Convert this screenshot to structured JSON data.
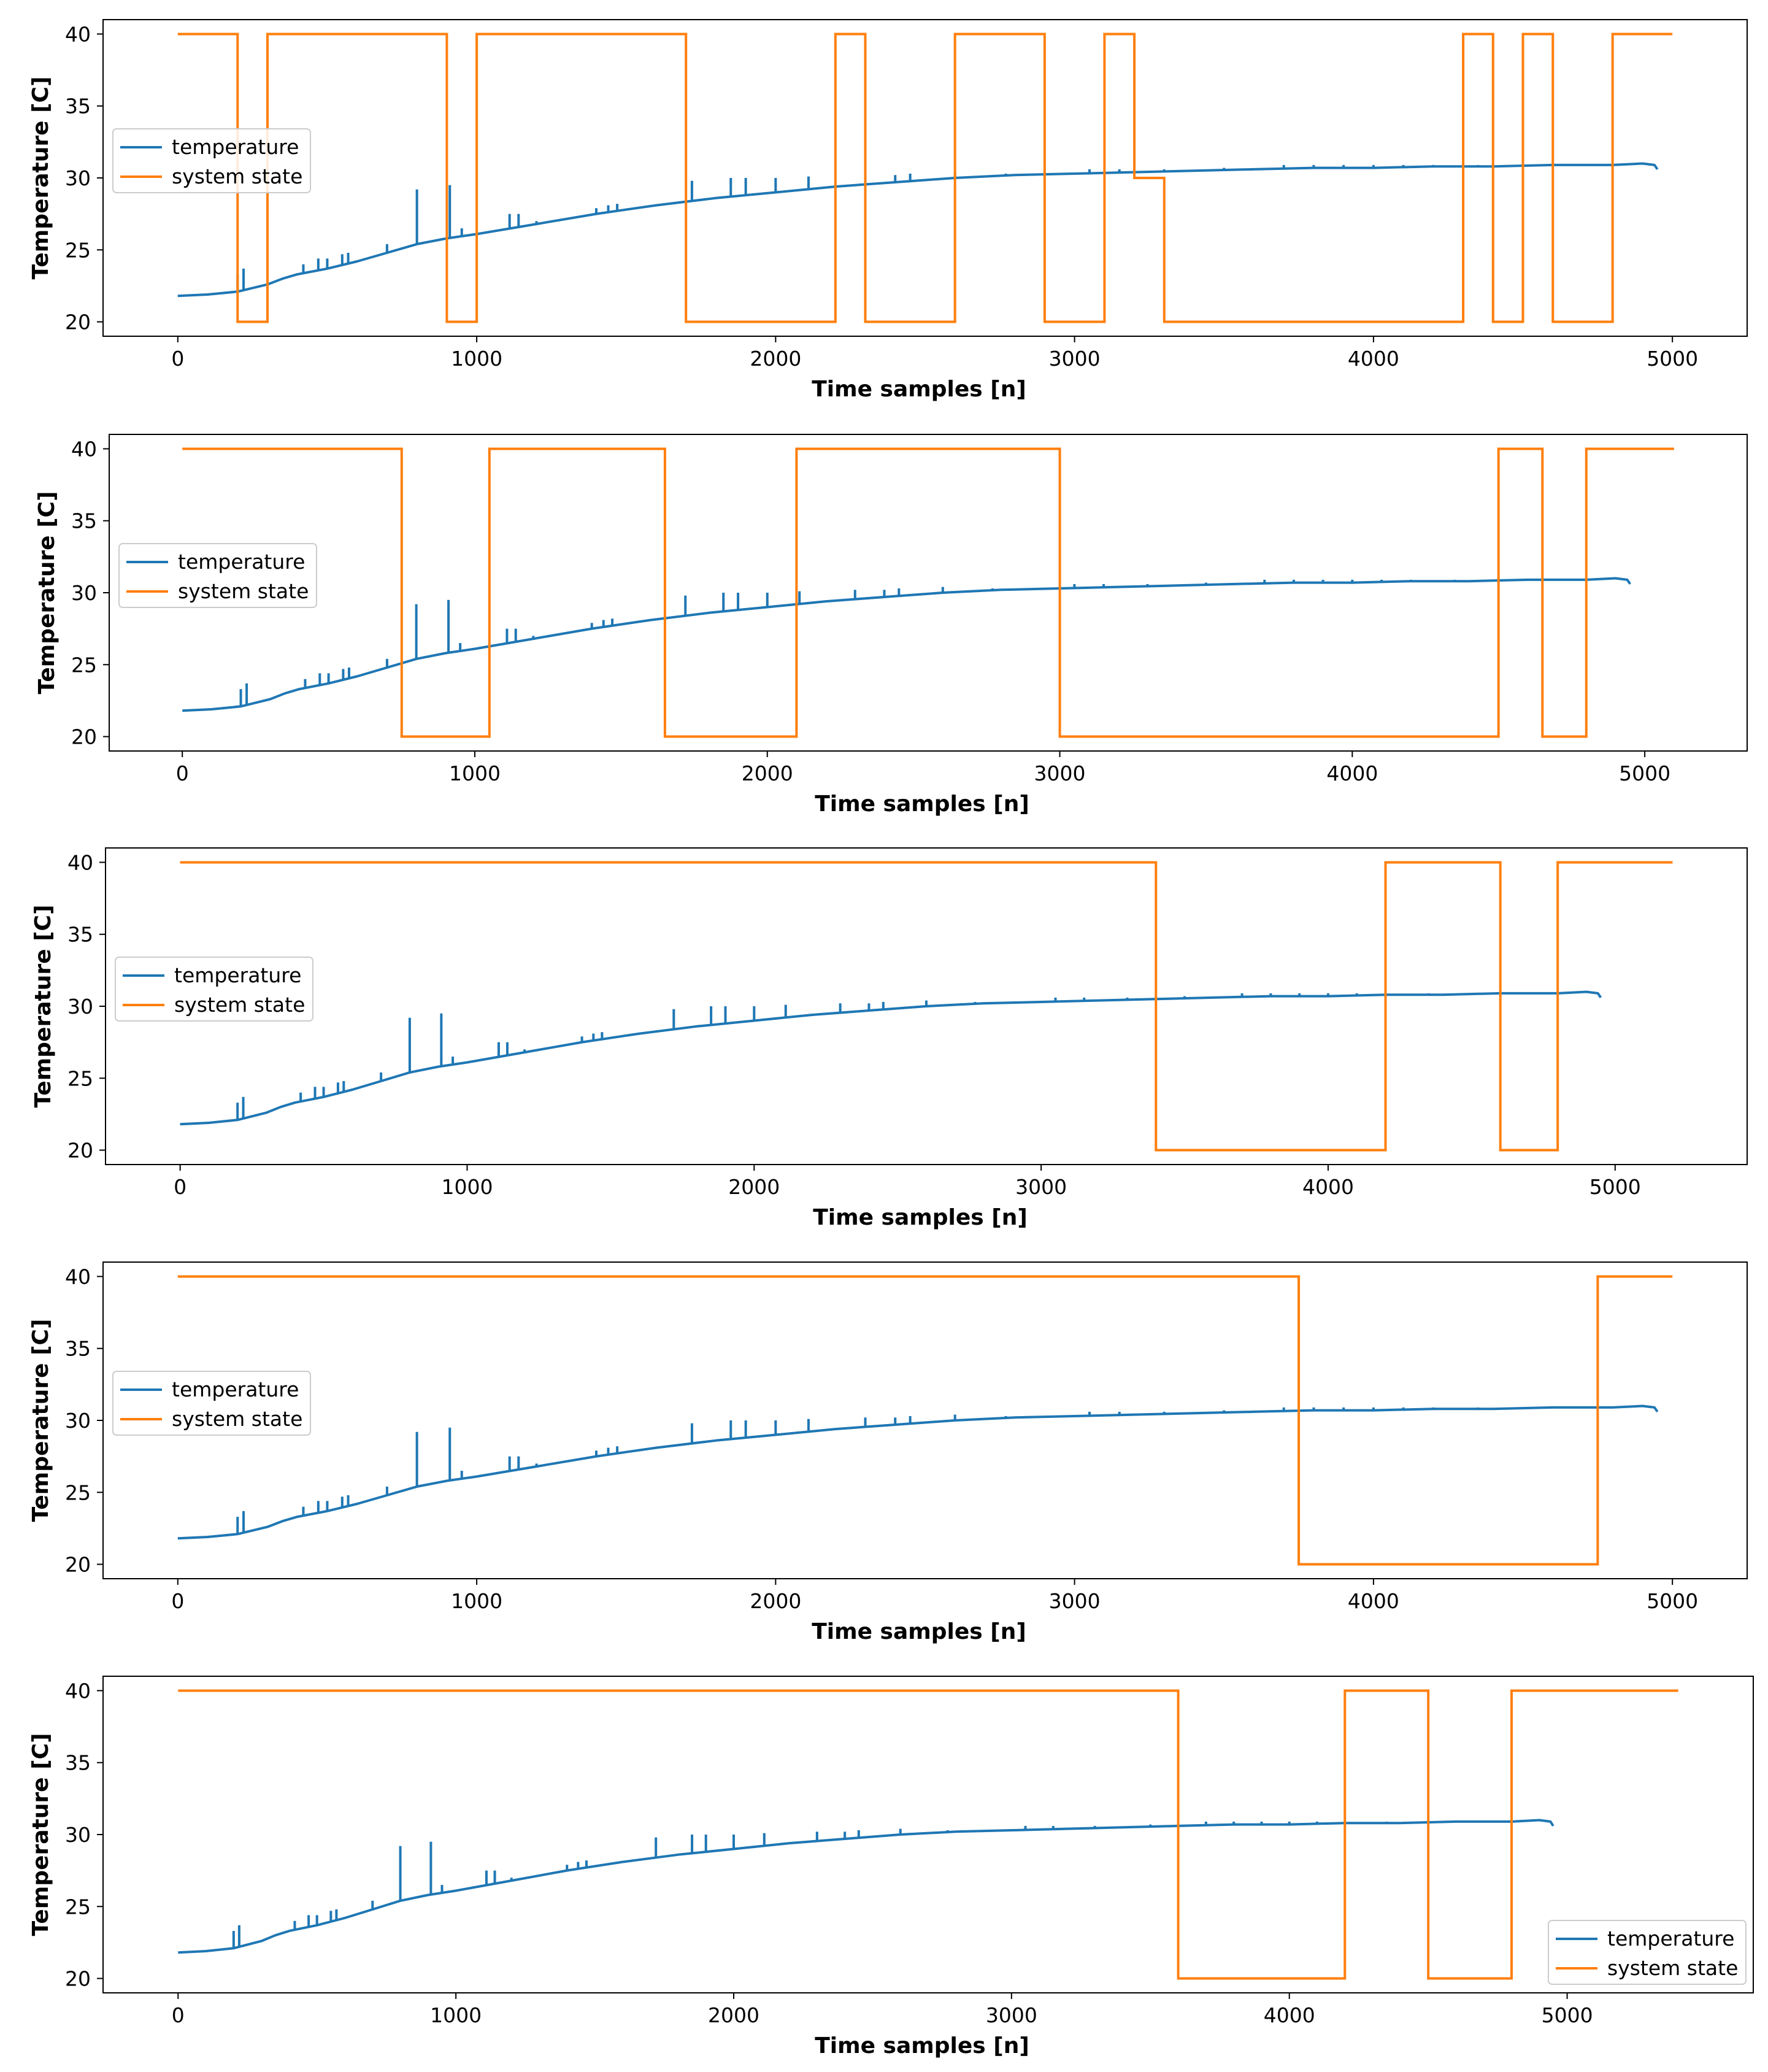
{
  "colors": {
    "temperature": "#1f77b4",
    "system_state": "#ff7f0e"
  },
  "chart_data": [
    {
      "type": "line",
      "xlabel": "Time samples [n]",
      "ylabel": "Temperature [C]",
      "xlim": [
        -250,
        5250
      ],
      "ylim": [
        19,
        41
      ],
      "xticks": [
        0,
        1000,
        2000,
        3000,
        4000,
        5000
      ],
      "yticks": [
        20,
        25,
        30,
        35,
        40
      ],
      "legend_position": "center-left",
      "legend": [
        "temperature",
        "system state"
      ],
      "series": [
        {
          "name": "system state",
          "style": "step",
          "x_max": 5000,
          "steps": [
            [
              0,
              40
            ],
            [
              200,
              20
            ],
            [
              300,
              40
            ],
            [
              900,
              20
            ],
            [
              1000,
              40
            ],
            [
              1700,
              20
            ],
            [
              2200,
              40
            ],
            [
              2300,
              20
            ],
            [
              2600,
              40
            ],
            [
              2900,
              20
            ],
            [
              3100,
              40
            ],
            [
              3200,
              30
            ],
            [
              3300,
              20
            ],
            [
              4300,
              40
            ],
            [
              4400,
              20
            ],
            [
              4500,
              40
            ],
            [
              4600,
              20
            ],
            [
              4800,
              40
            ]
          ]
        }
      ]
    },
    {
      "type": "line",
      "xlabel": "Time samples [n]",
      "ylabel": "Temperature [C]",
      "xlim": [
        -250,
        5350
      ],
      "ylim": [
        19,
        41
      ],
      "xticks": [
        0,
        1000,
        2000,
        3000,
        4000,
        5000
      ],
      "yticks": [
        20,
        25,
        30,
        35,
        40
      ],
      "legend_position": "center-left",
      "legend": [
        "temperature",
        "system state"
      ],
      "series": [
        {
          "name": "system state",
          "style": "step",
          "x_max": 5100,
          "steps": [
            [
              0,
              40
            ],
            [
              750,
              20
            ],
            [
              1050,
              40
            ],
            [
              1650,
              20
            ],
            [
              2100,
              40
            ],
            [
              3000,
              20
            ],
            [
              4500,
              40
            ],
            [
              4650,
              20
            ],
            [
              4800,
              40
            ]
          ]
        }
      ]
    },
    {
      "type": "line",
      "xlabel": "Time samples [n]",
      "ylabel": "Temperature [C]",
      "xlim": [
        -260,
        5460
      ],
      "ylim": [
        19,
        41
      ],
      "xticks": [
        0,
        1000,
        2000,
        3000,
        4000,
        5000
      ],
      "yticks": [
        20,
        25,
        30,
        35,
        40
      ],
      "legend_position": "center-left",
      "legend": [
        "temperature",
        "system state"
      ],
      "series": [
        {
          "name": "system state",
          "style": "step",
          "x_max": 5200,
          "steps": [
            [
              0,
              40
            ],
            [
              3400,
              20
            ],
            [
              4200,
              40
            ],
            [
              4600,
              20
            ],
            [
              4800,
              40
            ]
          ]
        }
      ]
    },
    {
      "type": "line",
      "xlabel": "Time samples [n]",
      "ylabel": "Temperature [C]",
      "xlim": [
        -250,
        5250
      ],
      "ylim": [
        19,
        41
      ],
      "xticks": [
        0,
        1000,
        2000,
        3000,
        4000,
        5000
      ],
      "yticks": [
        20,
        25,
        30,
        35,
        40
      ],
      "legend_position": "center-left",
      "legend": [
        "temperature",
        "system state"
      ],
      "series": [
        {
          "name": "system state",
          "style": "step",
          "x_max": 5000,
          "steps": [
            [
              0,
              40
            ],
            [
              3750,
              20
            ],
            [
              4750,
              40
            ]
          ]
        }
      ]
    },
    {
      "type": "line",
      "xlabel": "Time samples [n]",
      "ylabel": "Temperature [C]",
      "xlim": [
        -270,
        5670
      ],
      "ylim": [
        19,
        41
      ],
      "xticks": [
        0,
        1000,
        2000,
        3000,
        4000,
        5000
      ],
      "yticks": [
        20,
        25,
        30,
        35,
        40
      ],
      "legend_position": "lower-right",
      "legend": [
        "temperature",
        "system state"
      ],
      "series": [
        {
          "name": "system state",
          "style": "step",
          "x_max": 5400,
          "steps": [
            [
              0,
              40
            ],
            [
              3600,
              20
            ],
            [
              4200,
              40
            ],
            [
              4500,
              20
            ],
            [
              4800,
              40
            ]
          ]
        }
      ]
    }
  ],
  "temperature_series": {
    "name": "temperature",
    "x": [
      0,
      100,
      200,
      300,
      350,
      400,
      500,
      600,
      700,
      800,
      900,
      1000,
      1200,
      1400,
      1600,
      1800,
      2000,
      2200,
      2400,
      2600,
      2800,
      3000,
      3200,
      3400,
      3600,
      3800,
      4000,
      4200,
      4400,
      4600,
      4800,
      4900,
      4940,
      4950
    ],
    "y": [
      21.8,
      21.9,
      22.1,
      22.6,
      23.0,
      23.3,
      23.7,
      24.2,
      24.8,
      25.4,
      25.8,
      26.1,
      26.8,
      27.5,
      28.1,
      28.6,
      29.0,
      29.4,
      29.7,
      30.0,
      30.2,
      30.3,
      30.4,
      30.5,
      30.6,
      30.7,
      30.7,
      30.8,
      30.8,
      30.9,
      30.9,
      31.0,
      30.9,
      30.6
    ],
    "spikes": [
      {
        "x": 200,
        "y": 23.3
      },
      {
        "x": 220,
        "y": 23.7
      },
      {
        "x": 420,
        "y": 24.0
      },
      {
        "x": 470,
        "y": 24.4
      },
      {
        "x": 500,
        "y": 24.4
      },
      {
        "x": 550,
        "y": 24.7
      },
      {
        "x": 570,
        "y": 24.8
      },
      {
        "x": 700,
        "y": 25.4
      },
      {
        "x": 800,
        "y": 29.2
      },
      {
        "x": 910,
        "y": 29.5
      },
      {
        "x": 950,
        "y": 26.5
      },
      {
        "x": 1110,
        "y": 27.5
      },
      {
        "x": 1140,
        "y": 27.5
      },
      {
        "x": 1200,
        "y": 27.0
      },
      {
        "x": 1400,
        "y": 27.9
      },
      {
        "x": 1440,
        "y": 28.1
      },
      {
        "x": 1470,
        "y": 28.2
      },
      {
        "x": 1720,
        "y": 29.8
      },
      {
        "x": 1850,
        "y": 30.0
      },
      {
        "x": 1900,
        "y": 30.0
      },
      {
        "x": 2000,
        "y": 30.0
      },
      {
        "x": 2110,
        "y": 30.1
      },
      {
        "x": 2300,
        "y": 30.2
      },
      {
        "x": 2400,
        "y": 30.2
      },
      {
        "x": 2450,
        "y": 30.3
      },
      {
        "x": 2600,
        "y": 30.4
      },
      {
        "x": 2770,
        "y": 30.3
      },
      {
        "x": 3050,
        "y": 30.6
      },
      {
        "x": 3150,
        "y": 30.6
      },
      {
        "x": 3300,
        "y": 30.6
      },
      {
        "x": 3500,
        "y": 30.7
      },
      {
        "x": 3700,
        "y": 30.9
      },
      {
        "x": 3800,
        "y": 30.9
      },
      {
        "x": 3900,
        "y": 30.9
      },
      {
        "x": 4000,
        "y": 30.9
      },
      {
        "x": 4100,
        "y": 30.9
      },
      {
        "x": 4200,
        "y": 30.9
      },
      {
        "x": 4350,
        "y": 30.9
      }
    ]
  }
}
